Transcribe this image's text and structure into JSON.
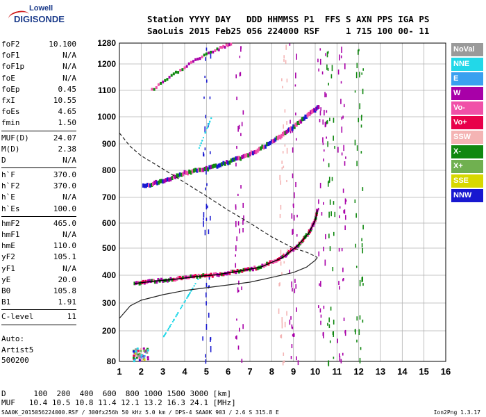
{
  "logo": {
    "line1": "Lowell",
    "line2": "DIGISONDE"
  },
  "header": {
    "line1": "Station YYYY DAY   DDD HHMMSS P1  FFS S AXN PPS IGA PS",
    "line2": "SaoLuis 2015 Feb25 056 224000 RSF     1 715 100 00- 11"
  },
  "params_group1": [
    {
      "k": "foF2",
      "v": "10.100"
    },
    {
      "k": "foF1",
      "v": "N/A"
    },
    {
      "k": "foF1p",
      "v": "N/A"
    },
    {
      "k": "foE",
      "v": "N/A"
    },
    {
      "k": "foEp",
      "v": "0.45"
    },
    {
      "k": "fxI",
      "v": "10.55"
    },
    {
      "k": "foEs",
      "v": "4.65"
    },
    {
      "k": "fmin",
      "v": "1.50"
    }
  ],
  "params_group2": [
    {
      "k": "MUF(D)",
      "v": "24.07"
    },
    {
      "k": "M(D)",
      "v": "2.38"
    },
    {
      "k": "D",
      "v": "N/A"
    }
  ],
  "params_group3": [
    {
      "k": "h`F",
      "v": "370.0"
    },
    {
      "k": "h`F2",
      "v": "370.0"
    },
    {
      "k": "h`E",
      "v": "N/A"
    },
    {
      "k": "h`Es",
      "v": "100.0"
    }
  ],
  "params_group4": [
    {
      "k": "hmF2",
      "v": "465.0"
    },
    {
      "k": "hmF1",
      "v": "N/A"
    },
    {
      "k": "hmE",
      "v": "110.0"
    },
    {
      "k": "yF2",
      "v": "105.1"
    },
    {
      "k": "yF1",
      "v": "N/A"
    },
    {
      "k": "yE",
      "v": "20.0"
    },
    {
      "k": "B0",
      "v": "105.8"
    },
    {
      "k": "B1",
      "v": "1.91"
    }
  ],
  "params_group5": [
    {
      "k": "C-level",
      "v": "11"
    }
  ],
  "auto": {
    "line1": "Auto:",
    "line2": "Artist5",
    "line3": "500200"
  },
  "legend": [
    {
      "label": "NoVal",
      "color": "#9a9a9a"
    },
    {
      "label": "NNE",
      "color": "#22d8e8"
    },
    {
      "label": "E",
      "color": "#3aa0f0"
    },
    {
      "label": "W",
      "color": "#a800a8"
    },
    {
      "label": "Vo-",
      "color": "#f050a8"
    },
    {
      "label": "Vo+",
      "color": "#e8004a"
    },
    {
      "label": "SSW",
      "color": "#f4b4b4"
    },
    {
      "label": "X-",
      "color": "#108810"
    },
    {
      "label": "X+",
      "color": "#70b050"
    },
    {
      "label": "SSE",
      "color": "#d8d800"
    },
    {
      "label": "NNW",
      "color": "#1818d0"
    }
  ],
  "bottom": {
    "line1": "D      100  200  400  600  800 1000 1500 3000 [km]",
    "line2": "MUF   10.4 10.5 10.8 11.4 12.1 13.2 16.3 24.1 [MHz]"
  },
  "footer": "SAA0K_2015056224000.RSF / 300fx256h 50 kHz 5.0 km / DPS-4 SAA0K 903 / 2.6 S 315.8 E",
  "version": "Ion2Png 1.3.17",
  "chart_data": {
    "type": "scatter",
    "x_ticks": [
      "1",
      "2",
      "3",
      "4",
      "5",
      "6",
      "7",
      "8",
      "9",
      "10",
      "11",
      "12",
      "13",
      "14",
      "15",
      "16"
    ],
    "y_ticks": [
      "80",
      "200",
      "300",
      "400",
      "500",
      "600",
      "700",
      "800",
      "900",
      "1000",
      "1100",
      "1200",
      "1280"
    ],
    "xlim": [
      1,
      16
    ],
    "ylim": [
      80,
      1280
    ],
    "grid": true,
    "profile_solid": [
      [
        1,
        245
      ],
      [
        1.5,
        290
      ],
      [
        2,
        310
      ],
      [
        3,
        330
      ],
      [
        4,
        345
      ],
      [
        5,
        355
      ],
      [
        6,
        365
      ],
      [
        7,
        375
      ],
      [
        8,
        392
      ],
      [
        9,
        410
      ],
      [
        9.6,
        430
      ],
      [
        10,
        455
      ],
      [
        10.1,
        465
      ]
    ],
    "profile_dashed": [
      [
        1,
        940
      ],
      [
        1.5,
        890
      ],
      [
        2,
        855
      ],
      [
        3,
        805
      ],
      [
        4,
        755
      ],
      [
        5,
        705
      ],
      [
        6,
        650
      ],
      [
        7,
        600
      ],
      [
        8,
        545
      ],
      [
        9,
        500
      ],
      [
        9.6,
        485
      ],
      [
        10,
        470
      ],
      [
        10.1,
        465
      ]
    ],
    "trace_o": [
      [
        1.7,
        370
      ],
      [
        2.5,
        378
      ],
      [
        3.5,
        385
      ],
      [
        4.5,
        395
      ],
      [
        5.5,
        402
      ],
      [
        6.5,
        415
      ],
      [
        7.5,
        430
      ],
      [
        8.5,
        465
      ],
      [
        9.2,
        510
      ],
      [
        9.7,
        560
      ],
      [
        10,
        610
      ],
      [
        10.1,
        650
      ]
    ],
    "trace_o_echo": [
      [
        2.1,
        740
      ],
      [
        3,
        760
      ],
      [
        4,
        790
      ],
      [
        5,
        805
      ],
      [
        6,
        830
      ],
      [
        7,
        860
      ],
      [
        8,
        905
      ],
      [
        8.8,
        950
      ],
      [
        9.5,
        995
      ],
      [
        10.2,
        1040
      ]
    ],
    "trace_o_echo2": [
      [
        2.5,
        1100
      ],
      [
        3.5,
        1160
      ],
      [
        4.5,
        1215
      ],
      [
        5.5,
        1255
      ],
      [
        6.2,
        1280
      ]
    ]
  }
}
